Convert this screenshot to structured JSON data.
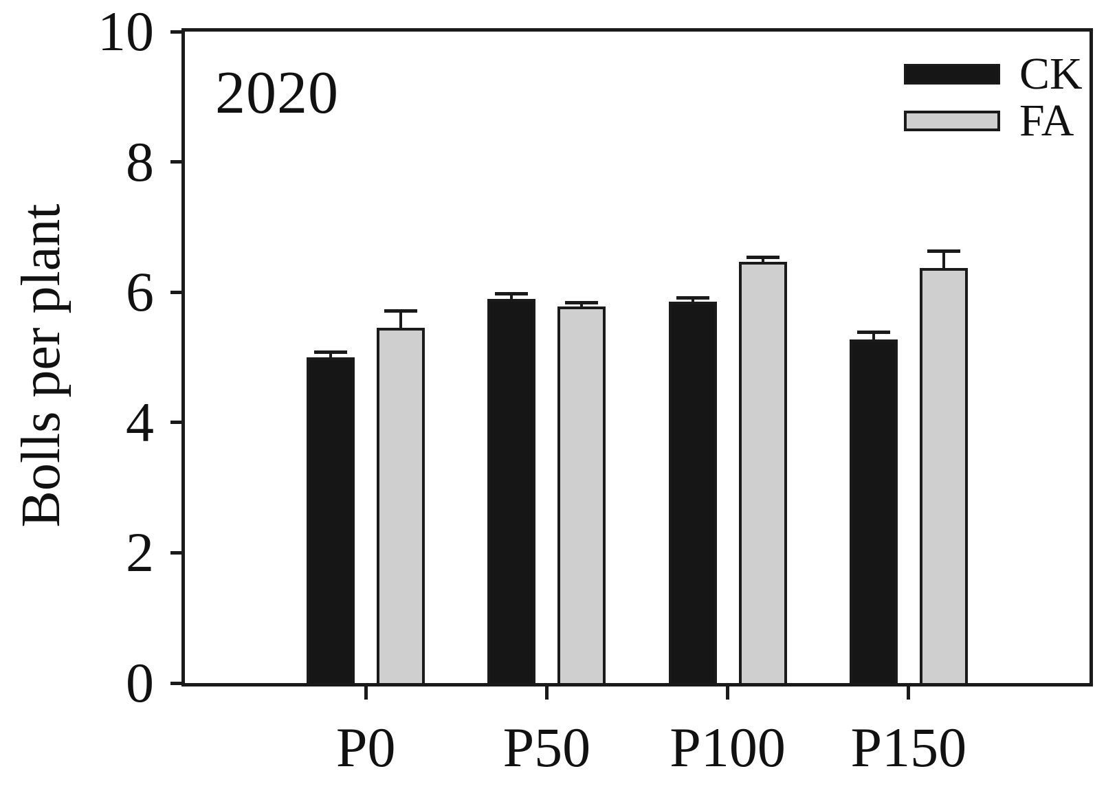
{
  "chart_data": {
    "type": "bar",
    "annotation": "2020",
    "title": "",
    "xlabel": "",
    "ylabel": "Bolls per plant",
    "categories": [
      "P0",
      "P50",
      "P100",
      "P150"
    ],
    "series": [
      {
        "name": "CK",
        "fill": "#161616",
        "values": [
          5.0,
          5.9,
          5.85,
          5.27
        ],
        "errors": [
          0.08,
          0.08,
          0.06,
          0.12
        ]
      },
      {
        "name": "FA",
        "fill": "#cfcfcf",
        "values": [
          5.45,
          5.78,
          6.47,
          6.37
        ],
        "errors": [
          0.26,
          0.06,
          0.07,
          0.26
        ]
      }
    ],
    "ylim": [
      0,
      10
    ],
    "yticks": [
      0,
      2,
      4,
      6,
      8,
      10
    ],
    "grid": false,
    "error_bars": "upper",
    "legend_position": "top-right",
    "colors": {
      "axis": "#1a1a1a",
      "bar_border": "#1a1a1a",
      "background": "#ffffff"
    }
  }
}
